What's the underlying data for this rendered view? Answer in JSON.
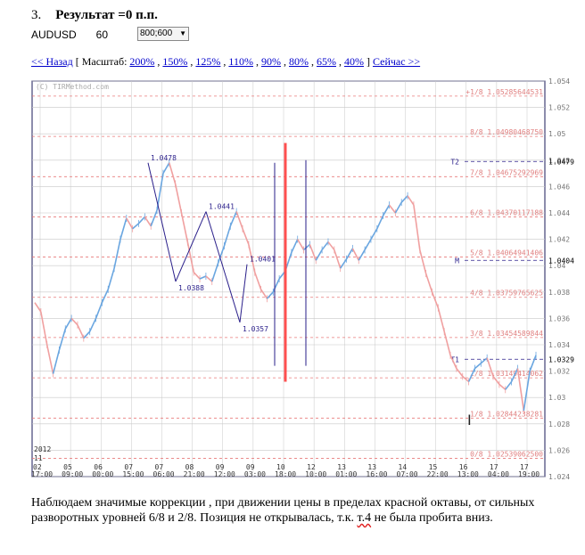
{
  "heading": {
    "number": "3.",
    "title": "Результат =0 п.п."
  },
  "symbol": {
    "pair": "AUDUSD",
    "period": "60",
    "size_selected": "800;600"
  },
  "nav": {
    "back": "<< Назад",
    "open_bracket": "[ Масштаб:",
    "scales": [
      "200%",
      "150%",
      "125%",
      "110%",
      "90%",
      "80%",
      "65%",
      "40%"
    ],
    "close_bracket": "]",
    "now": "Сейчас >>"
  },
  "chart_data": {
    "type": "line",
    "watermark": "(C) TIRMethod.com",
    "ylim": [
      1.024,
      1.054
    ],
    "y_ticks": [
      "1.054",
      "1.052",
      "1.05",
      "1.048",
      "1.046",
      "1.044",
      "1.042",
      "1.04",
      "1.038",
      "1.036",
      "1.034",
      "1.032",
      "1.03",
      "1.028",
      "1.026",
      "1.024"
    ],
    "x_labels": [
      {
        "top": "02",
        "bottom": "17:00"
      },
      {
        "top": "05",
        "bottom": "09:00"
      },
      {
        "top": "06",
        "bottom": "00:00"
      },
      {
        "top": "07",
        "bottom": "15:00"
      },
      {
        "top": "07",
        "bottom": "06:00"
      },
      {
        "top": "08",
        "bottom": "21:00"
      },
      {
        "top": "09",
        "bottom": "12:00"
      },
      {
        "top": "09",
        "bottom": "03:00"
      },
      {
        "top": "10",
        "bottom": "18:00"
      },
      {
        "top": "12",
        "bottom": "10:00"
      },
      {
        "top": "13",
        "bottom": "01:00"
      },
      {
        "top": "13",
        "bottom": "16:00"
      },
      {
        "top": "14",
        "bottom": "07:00"
      },
      {
        "top": "15",
        "bottom": "22:00"
      },
      {
        "top": "16",
        "bottom": "13:00"
      },
      {
        "top": "17",
        "bottom": "04:00"
      },
      {
        "top": "17",
        "bottom": "19:00"
      }
    ],
    "year_label": [
      "2012",
      "11"
    ],
    "octave_levels": [
      {
        "label": "+1/8 1.05285644531",
        "value": 1.05286
      },
      {
        "label": "8/8 1.04980468750",
        "value": 1.0498
      },
      {
        "label": "7/8 1.04675292969",
        "value": 1.04675
      },
      {
        "label": "6/8 1.04370117188",
        "value": 1.0437
      },
      {
        "label": "5/8 1.04064941406",
        "value": 1.04065
      },
      {
        "label": "4/8 1.03759765625",
        "value": 1.0376
      },
      {
        "label": "3/8 1.03454589844",
        "value": 1.03455
      },
      {
        "label": "2/8 1.03149414062",
        "value": 1.03149
      },
      {
        "label": "1/8 1.02844238281",
        "value": 1.02844
      },
      {
        "label": "0/8 1.02539062500",
        "value": 1.02539
      }
    ],
    "targets": [
      {
        "tag": "T2",
        "value": "1.0479"
      },
      {
        "tag": "M",
        "value": "1.0404"
      },
      {
        "tag": "T1",
        "value": "1.0329"
      }
    ],
    "pivots": [
      {
        "label": "1.0478",
        "value": 1.0478
      },
      {
        "label": "1.0388",
        "value": 1.0388
      },
      {
        "label": "1.0441",
        "value": 1.0441
      },
      {
        "label": "1.0357",
        "value": 1.0357
      },
      {
        "label": "1.0401",
        "value": 1.0401
      }
    ],
    "price_series": [
      1.0372,
      1.0365,
      1.034,
      1.0318,
      1.0336,
      1.0352,
      1.036,
      1.0355,
      1.0345,
      1.035,
      1.036,
      1.0372,
      1.0382,
      1.0398,
      1.042,
      1.0436,
      1.0428,
      1.0432,
      1.0437,
      1.043,
      1.0442,
      1.047,
      1.0478,
      1.0462,
      1.044,
      1.0418,
      1.0395,
      1.039,
      1.0392,
      1.0388,
      1.0402,
      1.0415,
      1.043,
      1.0441,
      1.0428,
      1.0416,
      1.0395,
      1.0382,
      1.0375,
      1.038,
      1.039,
      1.0396,
      1.041,
      1.042,
      1.0412,
      1.0416,
      1.0404,
      1.0412,
      1.0418,
      1.0412,
      1.0398,
      1.0405,
      1.0413,
      1.0404,
      1.0412,
      1.042,
      1.0428,
      1.0438,
      1.0446,
      1.044,
      1.0448,
      1.0453,
      1.0446,
      1.0412,
      1.0394,
      1.038,
      1.0368,
      1.035,
      1.0332,
      1.0322,
      1.0316,
      1.0312,
      1.0322,
      1.0326,
      1.033,
      1.0316,
      1.031,
      1.0306,
      1.0312,
      1.0322,
      1.029,
      1.032,
      1.0332
    ],
    "colors": {
      "grid": "#c8c8c8",
      "octave": "#e87a7a",
      "label": "#e08080",
      "price_up": "#6aa6e0",
      "price_down": "#f0a0a0",
      "pattern": "#2a1f8a",
      "red_bar": "#ff5050",
      "frame": "#1a1a5a"
    }
  },
  "caption": {
    "part1": "Наблюдаем значимые коррекции , при движении цены в пределах красной октавы, от сильных разворотных уровней 6/8 и 2/8. Позиция не открывалась, т.к.",
    "err_word": "т.4",
    "part2": " не была пробита вниз."
  }
}
